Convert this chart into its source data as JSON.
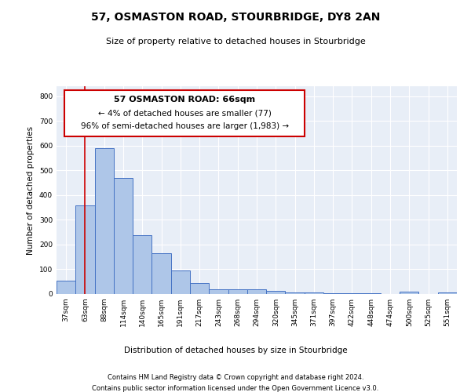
{
  "title": "57, OSMASTON ROAD, STOURBRIDGE, DY8 2AN",
  "subtitle": "Size of property relative to detached houses in Stourbridge",
  "xlabel": "Distribution of detached houses by size in Stourbridge",
  "ylabel": "Number of detached properties",
  "footer1": "Contains HM Land Registry data © Crown copyright and database right 2024.",
  "footer2": "Contains public sector information licensed under the Open Government Licence v3.0.",
  "bar_labels": [
    "37sqm",
    "63sqm",
    "88sqm",
    "114sqm",
    "140sqm",
    "165sqm",
    "191sqm",
    "217sqm",
    "243sqm",
    "268sqm",
    "294sqm",
    "320sqm",
    "345sqm",
    "371sqm",
    "397sqm",
    "422sqm",
    "448sqm",
    "474sqm",
    "500sqm",
    "525sqm",
    "551sqm"
  ],
  "bar_values": [
    55,
    357,
    590,
    468,
    237,
    165,
    96,
    45,
    20,
    20,
    18,
    13,
    7,
    5,
    4,
    3,
    2,
    1,
    8,
    1,
    5
  ],
  "bar_color": "#aec6e8",
  "bar_edge_color": "#4472c4",
  "background_color": "#e8eef7",
  "ylim": [
    0,
    840
  ],
  "yticks": [
    0,
    100,
    200,
    300,
    400,
    500,
    600,
    700,
    800
  ],
  "property_line_x": 1.0,
  "property_line_color": "#cc0000",
  "annotation_text1": "57 OSMASTON ROAD: 66sqm",
  "annotation_text2": "← 4% of detached houses are smaller (77)",
  "annotation_text3": "96% of semi-detached houses are larger (1,983) →",
  "annotation_color": "#cc0000"
}
